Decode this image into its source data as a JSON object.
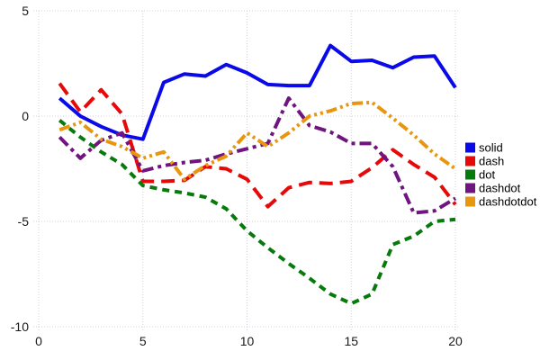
{
  "chart_data": {
    "type": "line",
    "title": "",
    "xlabel": "",
    "ylabel": "",
    "xlim": [
      0,
      20.2
    ],
    "ylim": [
      -10,
      5
    ],
    "xticks": [
      0,
      5,
      10,
      15,
      20
    ],
    "yticks": [
      -10,
      -5,
      0,
      5
    ],
    "grid": true,
    "grid_style": "dotted",
    "grid_color": "#d0d0dd",
    "tick_label_color": "#1a1a1a",
    "background_color": "#ffffff",
    "legend_position": "right",
    "x": [
      1,
      2,
      3,
      4,
      5,
      6,
      7,
      8,
      9,
      10,
      11,
      12,
      13,
      14,
      15,
      16,
      17,
      18,
      19,
      20
    ],
    "series": [
      {
        "name": "solid",
        "color": "#0a0ae8",
        "dash": "solid",
        "values": [
          0.85,
          0.0,
          -0.5,
          -0.9,
          -1.1,
          1.6,
          2.0,
          1.9,
          2.45,
          2.05,
          1.5,
          1.45,
          1.45,
          3.35,
          2.6,
          2.65,
          2.3,
          2.8,
          2.85,
          1.35
        ]
      },
      {
        "name": "dash",
        "color": "#e60909",
        "dash": "dash",
        "values": [
          1.55,
          0.2,
          1.25,
          0.1,
          -3.1,
          -3.1,
          -3.05,
          -2.4,
          -2.5,
          -3.0,
          -4.3,
          -3.4,
          -3.15,
          -3.2,
          -3.1,
          -2.45,
          -1.6,
          -2.3,
          -2.9,
          -4.2
        ]
      },
      {
        "name": "dot",
        "color": "#077a0c",
        "dash": "dot",
        "values": [
          -0.2,
          -1.0,
          -1.7,
          -2.3,
          -3.3,
          -3.5,
          -3.65,
          -3.85,
          -4.4,
          -5.45,
          -6.25,
          -7.0,
          -7.7,
          -8.45,
          -8.9,
          -8.45,
          -6.1,
          -5.7,
          -5.0,
          -4.9
        ]
      },
      {
        "name": "dashdot",
        "color": "#701480",
        "dash": "dashdot",
        "values": [
          -1.0,
          -2.0,
          -1.15,
          -0.8,
          -2.6,
          -2.35,
          -2.2,
          -2.1,
          -1.8,
          -1.55,
          -1.3,
          0.85,
          -0.45,
          -0.75,
          -1.3,
          -1.3,
          -2.4,
          -4.6,
          -4.5,
          -3.9
        ]
      },
      {
        "name": "dashdotdot",
        "color": "#e8960e",
        "dash": "dashdotdot",
        "values": [
          -0.65,
          -0.3,
          -1.1,
          -1.45,
          -2.0,
          -1.7,
          -3.0,
          -2.35,
          -1.9,
          -0.8,
          -1.45,
          -0.8,
          0.0,
          0.25,
          0.6,
          0.65,
          -0.1,
          -0.9,
          -1.8,
          -2.5
        ]
      }
    ],
    "legend_items": [
      {
        "label": "solid"
      },
      {
        "label": "dash"
      },
      {
        "label": "dot"
      },
      {
        "label": "dashdot"
      },
      {
        "label": "dashdotdot"
      }
    ]
  }
}
